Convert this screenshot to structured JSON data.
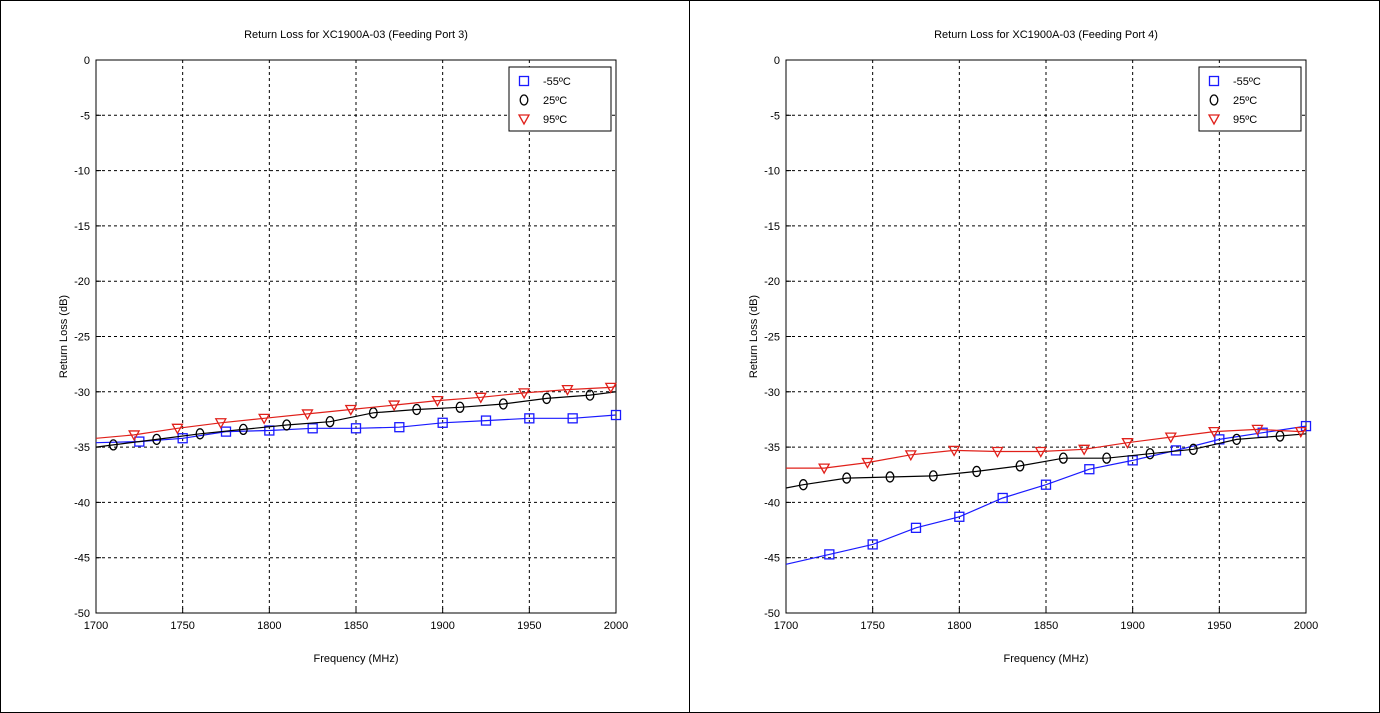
{
  "chart_data": [
    {
      "type": "line",
      "title": "Return Loss for XC1900A-03 (Feeding Port 3)",
      "xlabel": "Frequency (MHz)",
      "ylabel": "Return Loss (dB)",
      "xlim": [
        1700,
        2000
      ],
      "ylim": [
        -50,
        0
      ],
      "xticks": [
        1700,
        1750,
        1800,
        1850,
        1900,
        1950,
        2000
      ],
      "yticks": [
        0,
        -5,
        -10,
        -15,
        -20,
        -25,
        -30,
        -35,
        -40,
        -45,
        -50
      ],
      "grid": true,
      "legend_position": "top-right",
      "series": [
        {
          "name": "-55ºC",
          "marker": "square",
          "color": "#1a1aff",
          "x": [
            1700,
            1725,
            1750,
            1775,
            1800,
            1825,
            1850,
            1875,
            1900,
            1925,
            1950,
            1975,
            2000
          ],
          "y": [
            -34.6,
            -34.5,
            -34.2,
            -33.6,
            -33.5,
            -33.3,
            -33.3,
            -33.2,
            -32.8,
            -32.6,
            -32.4,
            -32.4,
            -32.1
          ],
          "marker_x": [
            1725,
            1750,
            1775,
            1800,
            1825,
            1850,
            1875,
            1900,
            1925,
            1950,
            1975,
            2000
          ]
        },
        {
          "name": "25ºC",
          "marker": "circle",
          "color": "#000000",
          "x": [
            1700,
            1710,
            1735,
            1760,
            1785,
            1810,
            1835,
            1860,
            1885,
            1910,
            1935,
            1960,
            1985,
            2000
          ],
          "y": [
            -35.0,
            -34.8,
            -34.3,
            -33.8,
            -33.4,
            -33.0,
            -32.7,
            -31.9,
            -31.6,
            -31.4,
            -31.1,
            -30.6,
            -30.3,
            -30.0
          ],
          "marker_x": [
            1710,
            1735,
            1760,
            1785,
            1810,
            1835,
            1860,
            1885,
            1910,
            1935,
            1960,
            1985
          ]
        },
        {
          "name": "95ºC",
          "marker": "triangle-down",
          "color": "#e0201a",
          "x": [
            1700,
            1722,
            1747,
            1772,
            1797,
            1822,
            1847,
            1872,
            1897,
            1922,
            1947,
            1972,
            1997,
            2000
          ],
          "y": [
            -34.2,
            -33.9,
            -33.3,
            -32.8,
            -32.4,
            -32.0,
            -31.6,
            -31.2,
            -30.8,
            -30.5,
            -30.1,
            -29.8,
            -29.6,
            -29.5
          ],
          "marker_x": [
            1722,
            1747,
            1772,
            1797,
            1822,
            1847,
            1872,
            1897,
            1922,
            1947,
            1972,
            1997
          ]
        }
      ]
    },
    {
      "type": "line",
      "title": "Return Loss for XC1900A-03 (Feeding Port 4)",
      "xlabel": "Frequency (MHz)",
      "ylabel": "Return Loss (dB)",
      "xlim": [
        1700,
        2000
      ],
      "ylim": [
        -50,
        0
      ],
      "xticks": [
        1700,
        1750,
        1800,
        1850,
        1900,
        1950,
        2000
      ],
      "yticks": [
        0,
        -5,
        -10,
        -15,
        -20,
        -25,
        -30,
        -35,
        -40,
        -45,
        -50
      ],
      "grid": true,
      "legend_position": "top-right",
      "series": [
        {
          "name": "-55ºC",
          "marker": "square",
          "color": "#1a1aff",
          "x": [
            1700,
            1725,
            1750,
            1775,
            1800,
            1825,
            1850,
            1875,
            1900,
            1925,
            1950,
            1975,
            2000
          ],
          "y": [
            -45.6,
            -44.7,
            -43.8,
            -42.3,
            -41.3,
            -39.6,
            -38.4,
            -37.0,
            -36.2,
            -35.3,
            -34.3,
            -33.7,
            -33.1
          ],
          "marker_x": [
            1725,
            1750,
            1775,
            1800,
            1825,
            1850,
            1875,
            1900,
            1925,
            1950,
            1975,
            2000
          ]
        },
        {
          "name": "25ºC",
          "marker": "circle",
          "color": "#000000",
          "x": [
            1700,
            1710,
            1735,
            1760,
            1785,
            1810,
            1835,
            1860,
            1885,
            1910,
            1935,
            1960,
            1985,
            2000
          ],
          "y": [
            -38.7,
            -38.4,
            -37.8,
            -37.7,
            -37.6,
            -37.2,
            -36.7,
            -36.0,
            -36.0,
            -35.6,
            -35.2,
            -34.3,
            -34.0,
            -33.8
          ],
          "marker_x": [
            1710,
            1735,
            1760,
            1785,
            1810,
            1835,
            1860,
            1885,
            1910,
            1935,
            1960,
            1985
          ]
        },
        {
          "name": "95ºC",
          "marker": "triangle-down",
          "color": "#e0201a",
          "x": [
            1700,
            1722,
            1747,
            1772,
            1797,
            1822,
            1847,
            1872,
            1897,
            1922,
            1947,
            1972,
            1997,
            2000
          ],
          "y": [
            -36.9,
            -36.9,
            -36.4,
            -35.7,
            -35.3,
            -35.4,
            -35.4,
            -35.2,
            -34.6,
            -34.1,
            -33.6,
            -33.4,
            -33.6,
            -33.5
          ],
          "marker_x": [
            1722,
            1747,
            1772,
            1797,
            1822,
            1847,
            1872,
            1897,
            1922,
            1947,
            1972,
            1997
          ]
        }
      ]
    }
  ]
}
